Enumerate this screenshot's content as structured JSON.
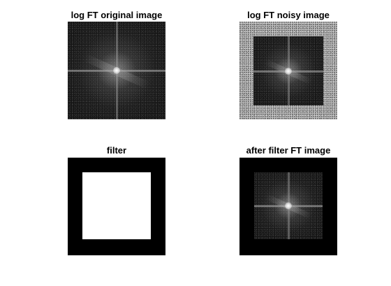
{
  "window": {
    "background": "#ffffff"
  },
  "panels": [
    {
      "title": "log FT original image"
    },
    {
      "title": "log FT noisy image"
    },
    {
      "title": "filter"
    },
    {
      "title": "after filter FT image"
    }
  ],
  "colors": {
    "spectrum_dark": "#141414",
    "noise_gray": "#a9a9a9",
    "filter_pass": "#ffffff",
    "filter_stop": "#000000"
  }
}
